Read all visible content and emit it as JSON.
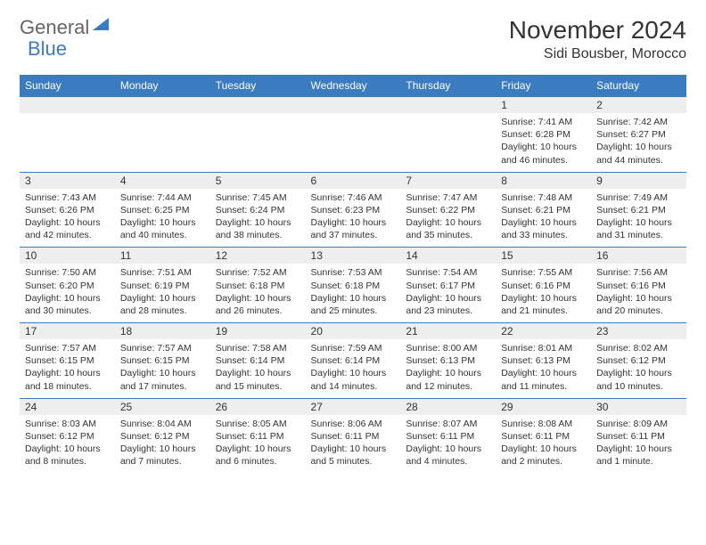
{
  "logo": {
    "part1": "General",
    "part2": "Blue"
  },
  "title": "November 2024",
  "location": "Sidi Bousber, Morocco",
  "colors": {
    "header_bg": "#3b7bbf",
    "header_text": "#ffffff",
    "daynum_bg": "#eeeeee",
    "border": "#3b7bbf",
    "text": "#333333",
    "background": "#ffffff"
  },
  "dayHeaders": [
    "Sunday",
    "Monday",
    "Tuesday",
    "Wednesday",
    "Thursday",
    "Friday",
    "Saturday"
  ],
  "weeks": [
    [
      null,
      null,
      null,
      null,
      null,
      {
        "n": "1",
        "sr": "7:41 AM",
        "ss": "6:28 PM",
        "dl": "10 hours and 46 minutes."
      },
      {
        "n": "2",
        "sr": "7:42 AM",
        "ss": "6:27 PM",
        "dl": "10 hours and 44 minutes."
      }
    ],
    [
      {
        "n": "3",
        "sr": "7:43 AM",
        "ss": "6:26 PM",
        "dl": "10 hours and 42 minutes."
      },
      {
        "n": "4",
        "sr": "7:44 AM",
        "ss": "6:25 PM",
        "dl": "10 hours and 40 minutes."
      },
      {
        "n": "5",
        "sr": "7:45 AM",
        "ss": "6:24 PM",
        "dl": "10 hours and 38 minutes."
      },
      {
        "n": "6",
        "sr": "7:46 AM",
        "ss": "6:23 PM",
        "dl": "10 hours and 37 minutes."
      },
      {
        "n": "7",
        "sr": "7:47 AM",
        "ss": "6:22 PM",
        "dl": "10 hours and 35 minutes."
      },
      {
        "n": "8",
        "sr": "7:48 AM",
        "ss": "6:21 PM",
        "dl": "10 hours and 33 minutes."
      },
      {
        "n": "9",
        "sr": "7:49 AM",
        "ss": "6:21 PM",
        "dl": "10 hours and 31 minutes."
      }
    ],
    [
      {
        "n": "10",
        "sr": "7:50 AM",
        "ss": "6:20 PM",
        "dl": "10 hours and 30 minutes."
      },
      {
        "n": "11",
        "sr": "7:51 AM",
        "ss": "6:19 PM",
        "dl": "10 hours and 28 minutes."
      },
      {
        "n": "12",
        "sr": "7:52 AM",
        "ss": "6:18 PM",
        "dl": "10 hours and 26 minutes."
      },
      {
        "n": "13",
        "sr": "7:53 AM",
        "ss": "6:18 PM",
        "dl": "10 hours and 25 minutes."
      },
      {
        "n": "14",
        "sr": "7:54 AM",
        "ss": "6:17 PM",
        "dl": "10 hours and 23 minutes."
      },
      {
        "n": "15",
        "sr": "7:55 AM",
        "ss": "6:16 PM",
        "dl": "10 hours and 21 minutes."
      },
      {
        "n": "16",
        "sr": "7:56 AM",
        "ss": "6:16 PM",
        "dl": "10 hours and 20 minutes."
      }
    ],
    [
      {
        "n": "17",
        "sr": "7:57 AM",
        "ss": "6:15 PM",
        "dl": "10 hours and 18 minutes."
      },
      {
        "n": "18",
        "sr": "7:57 AM",
        "ss": "6:15 PM",
        "dl": "10 hours and 17 minutes."
      },
      {
        "n": "19",
        "sr": "7:58 AM",
        "ss": "6:14 PM",
        "dl": "10 hours and 15 minutes."
      },
      {
        "n": "20",
        "sr": "7:59 AM",
        "ss": "6:14 PM",
        "dl": "10 hours and 14 minutes."
      },
      {
        "n": "21",
        "sr": "8:00 AM",
        "ss": "6:13 PM",
        "dl": "10 hours and 12 minutes."
      },
      {
        "n": "22",
        "sr": "8:01 AM",
        "ss": "6:13 PM",
        "dl": "10 hours and 11 minutes."
      },
      {
        "n": "23",
        "sr": "8:02 AM",
        "ss": "6:12 PM",
        "dl": "10 hours and 10 minutes."
      }
    ],
    [
      {
        "n": "24",
        "sr": "8:03 AM",
        "ss": "6:12 PM",
        "dl": "10 hours and 8 minutes."
      },
      {
        "n": "25",
        "sr": "8:04 AM",
        "ss": "6:12 PM",
        "dl": "10 hours and 7 minutes."
      },
      {
        "n": "26",
        "sr": "8:05 AM",
        "ss": "6:11 PM",
        "dl": "10 hours and 6 minutes."
      },
      {
        "n": "27",
        "sr": "8:06 AM",
        "ss": "6:11 PM",
        "dl": "10 hours and 5 minutes."
      },
      {
        "n": "28",
        "sr": "8:07 AM",
        "ss": "6:11 PM",
        "dl": "10 hours and 4 minutes."
      },
      {
        "n": "29",
        "sr": "8:08 AM",
        "ss": "6:11 PM",
        "dl": "10 hours and 2 minutes."
      },
      {
        "n": "30",
        "sr": "8:09 AM",
        "ss": "6:11 PM",
        "dl": "10 hours and 1 minute."
      }
    ]
  ],
  "labels": {
    "sunrise": "Sunrise:",
    "sunset": "Sunset:",
    "daylight": "Daylight:"
  }
}
